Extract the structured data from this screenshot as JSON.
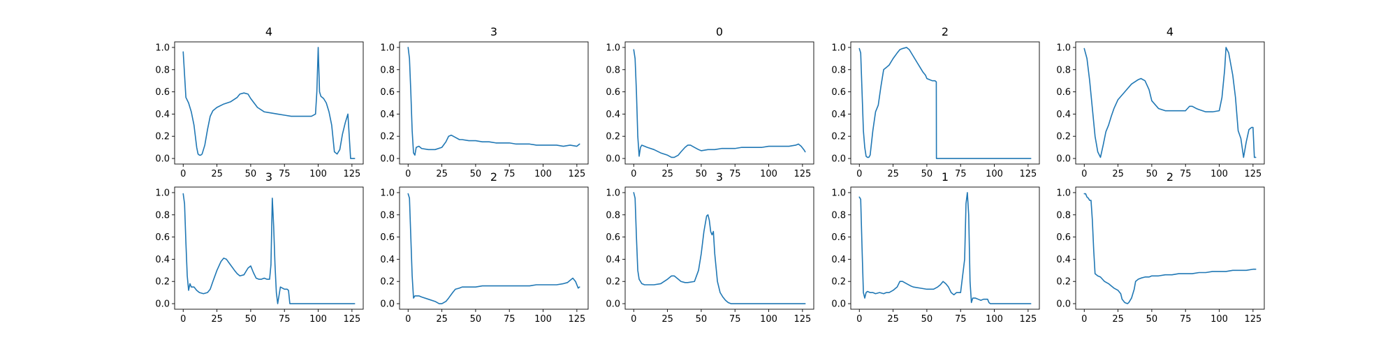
{
  "chart_data": [
    {
      "type": "line",
      "title": "4",
      "xlabel": "",
      "ylabel": "",
      "xlim": [
        -6.35,
        133.35
      ],
      "ylim": [
        -0.05,
        1.05
      ],
      "xticks": [
        0,
        25,
        50,
        75,
        100,
        125
      ],
      "yticks": [
        0.0,
        0.2,
        0.4,
        0.6,
        0.8,
        1.0
      ],
      "grid": false,
      "series_color": "#1f77b4",
      "x": [
        0,
        2,
        4,
        6,
        8,
        10,
        11,
        12,
        13,
        14,
        16,
        18,
        20,
        22,
        25,
        30,
        35,
        40,
        42,
        45,
        48,
        50,
        55,
        60,
        65,
        70,
        75,
        80,
        85,
        90,
        95,
        98,
        99,
        100,
        101,
        102,
        104,
        106,
        108,
        110,
        112,
        114,
        116,
        118,
        120,
        122,
        124,
        125,
        127
      ],
      "y": [
        0.96,
        0.55,
        0.5,
        0.42,
        0.3,
        0.1,
        0.04,
        0.03,
        0.03,
        0.04,
        0.12,
        0.26,
        0.38,
        0.43,
        0.46,
        0.49,
        0.51,
        0.55,
        0.58,
        0.59,
        0.58,
        0.54,
        0.46,
        0.42,
        0.41,
        0.4,
        0.39,
        0.38,
        0.38,
        0.38,
        0.38,
        0.4,
        0.6,
        1.0,
        0.6,
        0.56,
        0.54,
        0.5,
        0.42,
        0.3,
        0.06,
        0.04,
        0.08,
        0.22,
        0.32,
        0.4,
        0.0,
        0.0,
        0.0
      ]
    },
    {
      "type": "line",
      "title": "3",
      "xlabel": "",
      "ylabel": "",
      "xlim": [
        -6.35,
        133.35
      ],
      "ylim": [
        -0.05,
        1.05
      ],
      "xticks": [
        0,
        25,
        50,
        75,
        100,
        125
      ],
      "yticks": [
        0.0,
        0.2,
        0.4,
        0.6,
        0.8,
        1.0
      ],
      "grid": false,
      "series_color": "#1f77b4",
      "x": [
        0,
        1,
        2,
        3,
        4,
        5,
        6,
        8,
        10,
        15,
        20,
        25,
        28,
        30,
        32,
        35,
        38,
        40,
        45,
        50,
        55,
        60,
        65,
        70,
        75,
        80,
        85,
        90,
        95,
        100,
        105,
        110,
        115,
        120,
        125,
        127
      ],
      "y": [
        1.0,
        0.9,
        0.6,
        0.25,
        0.05,
        0.03,
        0.1,
        0.11,
        0.09,
        0.08,
        0.08,
        0.1,
        0.15,
        0.2,
        0.21,
        0.19,
        0.17,
        0.17,
        0.16,
        0.16,
        0.15,
        0.15,
        0.14,
        0.14,
        0.14,
        0.13,
        0.13,
        0.13,
        0.12,
        0.12,
        0.12,
        0.12,
        0.11,
        0.12,
        0.11,
        0.13
      ]
    },
    {
      "type": "line",
      "title": "0",
      "xlabel": "",
      "ylabel": "",
      "xlim": [
        -6.35,
        133.35
      ],
      "ylim": [
        -0.05,
        1.05
      ],
      "xticks": [
        0,
        25,
        50,
        75,
        100,
        125
      ],
      "yticks": [
        0.0,
        0.2,
        0.4,
        0.6,
        0.8,
        1.0
      ],
      "grid": false,
      "series_color": "#1f77b4",
      "x": [
        0,
        1,
        2,
        3,
        4,
        5,
        6,
        8,
        10,
        15,
        20,
        25,
        28,
        30,
        33,
        35,
        38,
        40,
        42,
        45,
        48,
        50,
        55,
        60,
        65,
        70,
        75,
        80,
        85,
        90,
        95,
        100,
        105,
        110,
        115,
        120,
        122,
        124,
        126,
        127
      ],
      "y": [
        0.98,
        0.9,
        0.6,
        0.2,
        0.02,
        0.1,
        0.12,
        0.11,
        0.1,
        0.08,
        0.05,
        0.03,
        0.01,
        0.01,
        0.03,
        0.06,
        0.1,
        0.12,
        0.12,
        0.1,
        0.08,
        0.07,
        0.08,
        0.08,
        0.09,
        0.09,
        0.09,
        0.1,
        0.1,
        0.1,
        0.1,
        0.11,
        0.11,
        0.11,
        0.11,
        0.12,
        0.13,
        0.11,
        0.08,
        0.06
      ]
    },
    {
      "type": "line",
      "title": "2",
      "xlabel": "",
      "ylabel": "",
      "xlim": [
        -6.35,
        133.35
      ],
      "ylim": [
        -0.05,
        1.05
      ],
      "xticks": [
        0,
        25,
        50,
        75,
        100,
        125
      ],
      "yticks": [
        0.0,
        0.2,
        0.4,
        0.6,
        0.8,
        1.0
      ],
      "grid": false,
      "series_color": "#1f77b4",
      "x": [
        0,
        1,
        2,
        3,
        4,
        5,
        6,
        7,
        8,
        10,
        12,
        14,
        16,
        18,
        20,
        22,
        25,
        28,
        30,
        32,
        35,
        37,
        39,
        41,
        43,
        45,
        47,
        49,
        50,
        52,
        54,
        56,
        57,
        57.1,
        60,
        70,
        80,
        90,
        100,
        110,
        120,
        127
      ],
      "y": [
        0.99,
        0.95,
        0.6,
        0.25,
        0.1,
        0.02,
        0.01,
        0.01,
        0.03,
        0.25,
        0.42,
        0.48,
        0.65,
        0.8,
        0.82,
        0.84,
        0.9,
        0.95,
        0.98,
        0.99,
        1.0,
        0.98,
        0.94,
        0.9,
        0.86,
        0.82,
        0.78,
        0.75,
        0.72,
        0.71,
        0.7,
        0.7,
        0.69,
        0.0,
        0.0,
        0.0,
        0.0,
        0.0,
        0.0,
        0.0,
        0.0,
        0.0
      ]
    },
    {
      "type": "line",
      "title": "4",
      "xlabel": "",
      "ylabel": "",
      "xlim": [
        -6.35,
        133.35
      ],
      "ylim": [
        -0.05,
        1.05
      ],
      "xticks": [
        0,
        25,
        50,
        75,
        100,
        125
      ],
      "yticks": [
        0.0,
        0.2,
        0.4,
        0.6,
        0.8,
        1.0
      ],
      "grid": false,
      "series_color": "#1f77b4",
      "x": [
        0,
        2,
        4,
        6,
        8,
        10,
        12,
        14,
        16,
        18,
        20,
        22,
        25,
        30,
        35,
        40,
        42,
        45,
        48,
        50,
        55,
        60,
        65,
        70,
        75,
        78,
        80,
        83,
        85,
        90,
        95,
        100,
        102,
        104,
        105,
        107,
        110,
        112,
        114,
        116,
        118,
        120,
        122,
        124,
        125,
        126,
        127
      ],
      "y": [
        0.99,
        0.9,
        0.7,
        0.45,
        0.2,
        0.06,
        0.01,
        0.12,
        0.24,
        0.3,
        0.38,
        0.45,
        0.53,
        0.6,
        0.67,
        0.71,
        0.72,
        0.7,
        0.62,
        0.52,
        0.45,
        0.43,
        0.43,
        0.43,
        0.43,
        0.47,
        0.47,
        0.45,
        0.44,
        0.42,
        0.42,
        0.43,
        0.55,
        0.8,
        1.0,
        0.95,
        0.75,
        0.55,
        0.25,
        0.18,
        0.01,
        0.15,
        0.26,
        0.28,
        0.28,
        0.01,
        0.01
      ]
    },
    {
      "type": "line",
      "title": "3",
      "xlabel": "",
      "ylabel": "",
      "xlim": [
        -6.35,
        133.35
      ],
      "ylim": [
        -0.05,
        1.05
      ],
      "xticks": [
        0,
        25,
        50,
        75,
        100,
        125
      ],
      "yticks": [
        0.0,
        0.2,
        0.4,
        0.6,
        0.8,
        1.0
      ],
      "grid": false,
      "series_color": "#1f77b4",
      "x": [
        0,
        1,
        2,
        3,
        4,
        5,
        6,
        7,
        8,
        10,
        12,
        15,
        18,
        20,
        22,
        25,
        28,
        30,
        32,
        35,
        38,
        40,
        42,
        45,
        48,
        50,
        52,
        54,
        56,
        58,
        60,
        62,
        64,
        65,
        66,
        67,
        68,
        69,
        70,
        72,
        75,
        77,
        78,
        79,
        80,
        90,
        100,
        110,
        120,
        127
      ],
      "y": [
        0.99,
        0.9,
        0.55,
        0.25,
        0.12,
        0.18,
        0.15,
        0.15,
        0.15,
        0.12,
        0.1,
        0.09,
        0.1,
        0.13,
        0.2,
        0.3,
        0.38,
        0.41,
        0.4,
        0.35,
        0.3,
        0.27,
        0.25,
        0.26,
        0.32,
        0.34,
        0.28,
        0.23,
        0.22,
        0.22,
        0.23,
        0.22,
        0.22,
        0.35,
        0.95,
        0.7,
        0.35,
        0.1,
        0.0,
        0.15,
        0.13,
        0.13,
        0.12,
        0.0,
        0.0,
        0.0,
        0.0,
        0.0,
        0.0,
        0.0
      ]
    },
    {
      "type": "line",
      "title": "2",
      "xlabel": "",
      "ylabel": "",
      "xlim": [
        -6.35,
        133.35
      ],
      "ylim": [
        -0.05,
        1.05
      ],
      "xticks": [
        0,
        25,
        50,
        75,
        100,
        125
      ],
      "yticks": [
        0.0,
        0.2,
        0.4,
        0.6,
        0.8,
        1.0
      ],
      "grid": false,
      "series_color": "#1f77b4",
      "x": [
        0,
        1,
        2,
        3,
        4,
        5,
        6,
        8,
        10,
        15,
        20,
        23,
        25,
        28,
        30,
        33,
        35,
        38,
        40,
        45,
        50,
        55,
        60,
        65,
        70,
        75,
        80,
        85,
        90,
        95,
        100,
        105,
        110,
        115,
        118,
        120,
        122,
        124,
        126,
        127
      ],
      "y": [
        0.99,
        0.95,
        0.6,
        0.25,
        0.05,
        0.07,
        0.07,
        0.07,
        0.06,
        0.04,
        0.02,
        0.0,
        0.0,
        0.02,
        0.05,
        0.1,
        0.13,
        0.14,
        0.15,
        0.15,
        0.15,
        0.16,
        0.16,
        0.16,
        0.16,
        0.16,
        0.16,
        0.16,
        0.16,
        0.17,
        0.17,
        0.17,
        0.17,
        0.18,
        0.19,
        0.21,
        0.23,
        0.2,
        0.14,
        0.15
      ]
    },
    {
      "type": "line",
      "title": "3",
      "xlabel": "",
      "ylabel": "",
      "xlim": [
        -6.35,
        133.35
      ],
      "ylim": [
        -0.05,
        1.05
      ],
      "xticks": [
        0,
        25,
        50,
        75,
        100,
        125
      ],
      "yticks": [
        0.0,
        0.2,
        0.4,
        0.6,
        0.8,
        1.0
      ],
      "grid": false,
      "series_color": "#1f77b4",
      "x": [
        0,
        1,
        2,
        3,
        4,
        5,
        6,
        8,
        10,
        15,
        20,
        25,
        28,
        30,
        33,
        35,
        38,
        40,
        45,
        48,
        50,
        52,
        54,
        55,
        56,
        57,
        58,
        59,
        60,
        62,
        64,
        66,
        68,
        70,
        72,
        75,
        80,
        90,
        100,
        110,
        120,
        127
      ],
      "y": [
        1.0,
        0.95,
        0.6,
        0.3,
        0.22,
        0.2,
        0.18,
        0.17,
        0.17,
        0.17,
        0.18,
        0.22,
        0.25,
        0.25,
        0.22,
        0.2,
        0.19,
        0.19,
        0.2,
        0.3,
        0.45,
        0.65,
        0.79,
        0.8,
        0.75,
        0.65,
        0.62,
        0.65,
        0.45,
        0.2,
        0.1,
        0.06,
        0.03,
        0.01,
        0.0,
        0.0,
        0.0,
        0.0,
        0.0,
        0.0,
        0.0,
        0.0
      ]
    },
    {
      "type": "line",
      "title": "1",
      "xlabel": "",
      "ylabel": "",
      "xlim": [
        -6.35,
        133.35
      ],
      "ylim": [
        -0.05,
        1.05
      ],
      "xticks": [
        0,
        25,
        50,
        75,
        100,
        125
      ],
      "yticks": [
        0.0,
        0.2,
        0.4,
        0.6,
        0.8,
        1.0
      ],
      "grid": false,
      "series_color": "#1f77b4",
      "x": [
        0,
        1,
        2,
        3,
        4,
        5,
        6,
        8,
        10,
        12,
        15,
        18,
        20,
        22,
        25,
        28,
        30,
        32,
        35,
        38,
        40,
        45,
        50,
        55,
        58,
        60,
        62,
        64,
        66,
        68,
        70,
        72,
        75,
        78,
        79,
        80,
        81,
        82,
        83,
        84,
        86,
        88,
        90,
        92,
        93,
        95,
        96,
        97,
        100,
        110,
        120,
        127
      ],
      "y": [
        0.96,
        0.94,
        0.5,
        0.1,
        0.05,
        0.1,
        0.11,
        0.1,
        0.1,
        0.09,
        0.1,
        0.09,
        0.1,
        0.1,
        0.12,
        0.15,
        0.2,
        0.2,
        0.18,
        0.16,
        0.15,
        0.14,
        0.13,
        0.13,
        0.15,
        0.17,
        0.2,
        0.18,
        0.15,
        0.1,
        0.08,
        0.1,
        0.1,
        0.4,
        0.9,
        1.0,
        0.8,
        0.2,
        0.01,
        0.05,
        0.05,
        0.04,
        0.03,
        0.04,
        0.04,
        0.04,
        0.01,
        0.0,
        0.0,
        0.0,
        0.0,
        0.0
      ]
    },
    {
      "type": "line",
      "title": "2",
      "xlabel": "",
      "ylabel": "",
      "xlim": [
        -6.35,
        133.35
      ],
      "ylim": [
        -0.05,
        1.05
      ],
      "xticks": [
        0,
        25,
        50,
        75,
        100,
        125
      ],
      "yticks": [
        0.0,
        0.2,
        0.4,
        0.6,
        0.8,
        1.0
      ],
      "grid": false,
      "series_color": "#1f77b4",
      "x": [
        0,
        1,
        2,
        3,
        4,
        5,
        6,
        7,
        8,
        10,
        12,
        15,
        18,
        20,
        22,
        25,
        27,
        28,
        30,
        32,
        33,
        35,
        37,
        38,
        40,
        42,
        45,
        48,
        50,
        55,
        60,
        65,
        70,
        75,
        80,
        85,
        90,
        95,
        100,
        105,
        110,
        115,
        120,
        125,
        127
      ],
      "y": [
        0.99,
        0.99,
        0.96,
        0.95,
        0.93,
        0.93,
        0.75,
        0.48,
        0.27,
        0.25,
        0.24,
        0.2,
        0.18,
        0.16,
        0.14,
        0.12,
        0.09,
        0.04,
        0.01,
        0.0,
        0.01,
        0.05,
        0.13,
        0.2,
        0.22,
        0.23,
        0.24,
        0.24,
        0.25,
        0.25,
        0.26,
        0.26,
        0.27,
        0.27,
        0.27,
        0.28,
        0.28,
        0.29,
        0.29,
        0.29,
        0.3,
        0.3,
        0.3,
        0.31,
        0.31
      ]
    }
  ]
}
